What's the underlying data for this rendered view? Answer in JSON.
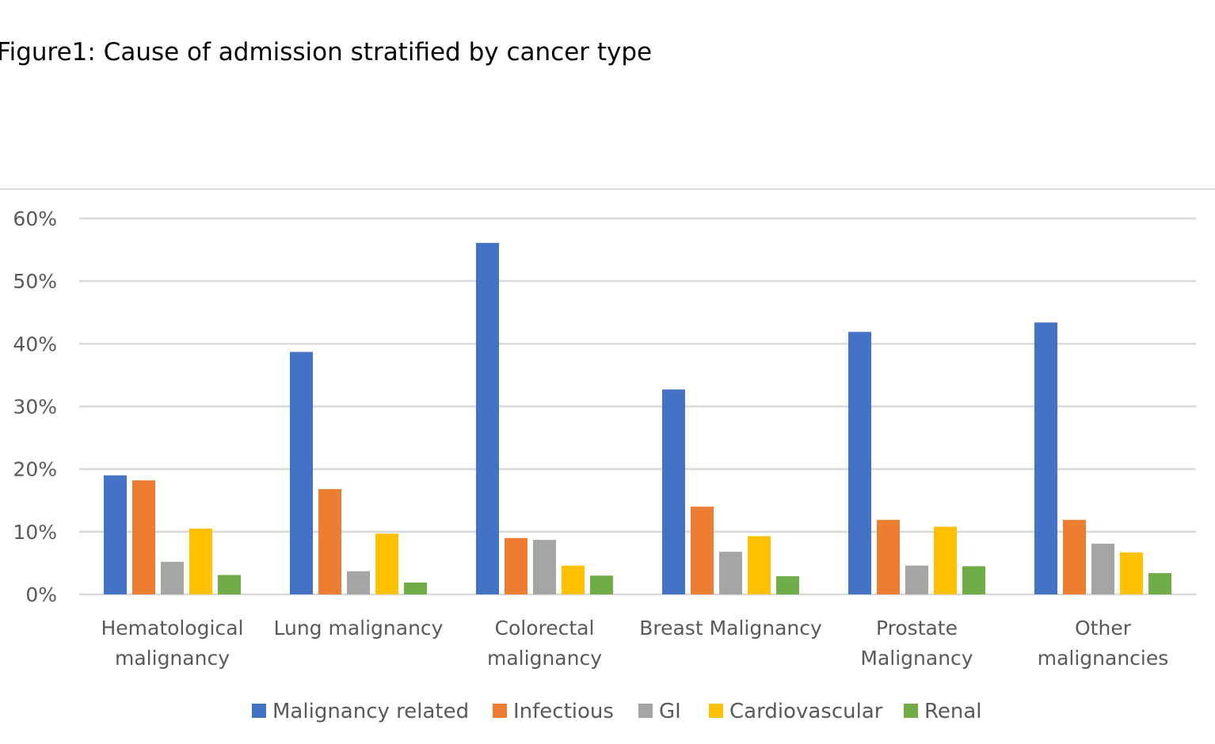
{
  "caption": "Figure1: Cause of admission stratified by cancer type",
  "chart_data": {
    "type": "bar",
    "title": "",
    "xlabel": "",
    "ylabel": "",
    "ylim": [
      0,
      0.6
    ],
    "yticks": [
      "0%",
      "10%",
      "20%",
      "30%",
      "40%",
      "50%",
      "60%"
    ],
    "grid": true,
    "legend_position": "bottom",
    "categories": [
      [
        "Hematological",
        "malignancy"
      ],
      [
        "Lung malignancy"
      ],
      [
        "Colorectal",
        "malignancy"
      ],
      [
        "Breast Malignancy"
      ],
      [
        "Prostate",
        "Malignancy"
      ],
      [
        "Other",
        "malignancies"
      ]
    ],
    "series": [
      {
        "name": "Malignancy related",
        "color": "#4472C4",
        "values": [
          0.19,
          0.387,
          0.561,
          0.327,
          0.419,
          0.434
        ]
      },
      {
        "name": "Infectious",
        "color": "#ED7D31",
        "values": [
          0.182,
          0.168,
          0.09,
          0.14,
          0.119,
          0.119
        ]
      },
      {
        "name": "GI",
        "color": "#A5A5A5",
        "values": [
          0.052,
          0.037,
          0.087,
          0.068,
          0.046,
          0.081
        ]
      },
      {
        "name": "Cardiovascular",
        "color": "#FFC000",
        "values": [
          0.105,
          0.097,
          0.046,
          0.093,
          0.108,
          0.067
        ]
      },
      {
        "name": "Renal",
        "color": "#70AD47",
        "values": [
          0.031,
          0.019,
          0.03,
          0.029,
          0.045,
          0.034
        ]
      }
    ]
  }
}
